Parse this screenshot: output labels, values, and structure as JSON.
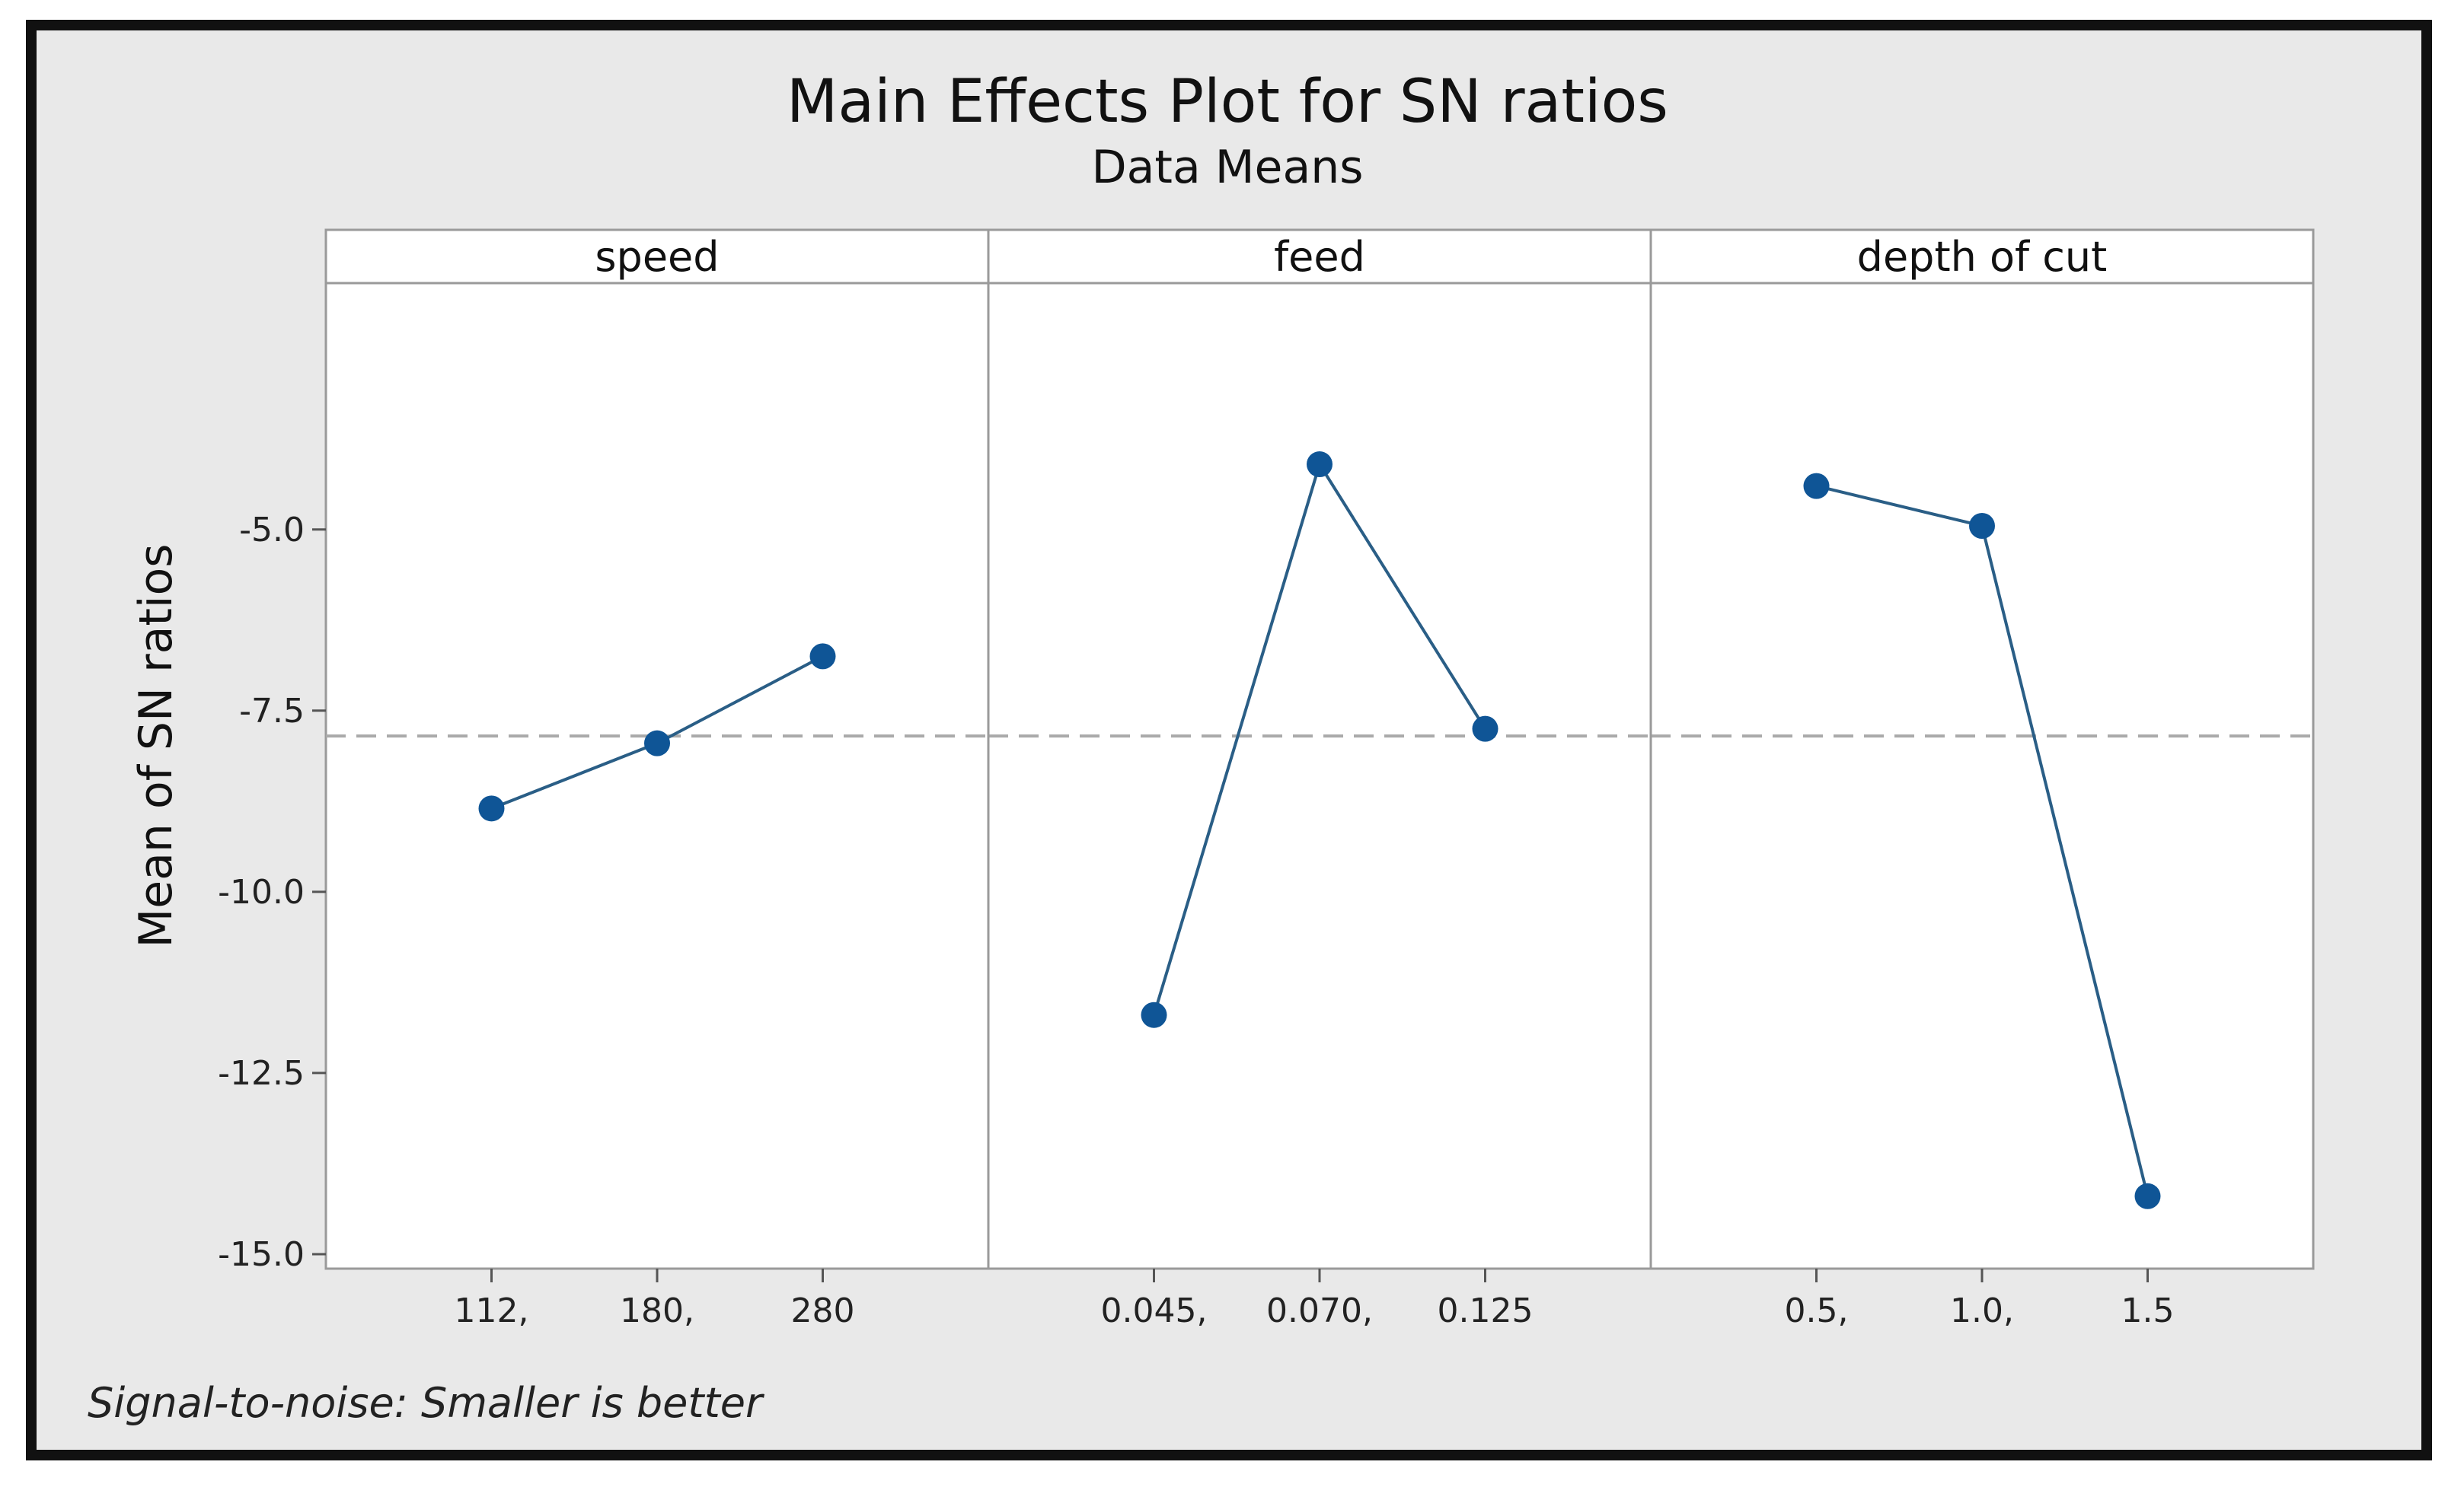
{
  "chart_data": {
    "type": "line",
    "title": "Main Effects Plot for SN ratios",
    "subtitle": "Data Means",
    "ylabel": "Mean of SN ratios",
    "ylim": [
      -15.2,
      -1.6
    ],
    "yticks": [
      -5.0,
      -7.5,
      -10.0,
      -12.5,
      -15.0
    ],
    "ytick_labels": [
      "-5.0",
      "-7.5",
      "-10.0",
      "-12.5",
      "-15.0"
    ],
    "reference_line": -7.85,
    "footnote": "Signal-to-noise: Smaller is better",
    "colors": {
      "line": "#2a5e86",
      "marker": "#0f5596",
      "reference": "#aaaaaa",
      "frame": "#111111",
      "background": "#e9e9e9",
      "plot_background": "#ffffff"
    },
    "panels": [
      {
        "name": "speed",
        "categories": [
          "112,",
          "180,",
          "280"
        ],
        "values": [
          -8.85,
          -7.95,
          -6.75
        ]
      },
      {
        "name": "feed",
        "categories": [
          "0.045,",
          "0.070,",
          "0.125"
        ],
        "values": [
          -11.7,
          -4.1,
          -7.75
        ]
      },
      {
        "name": "depth of cut",
        "categories": [
          "0.5,",
          "1.0,",
          "1.5"
        ],
        "values": [
          -4.4,
          -4.95,
          -14.2
        ]
      }
    ]
  }
}
